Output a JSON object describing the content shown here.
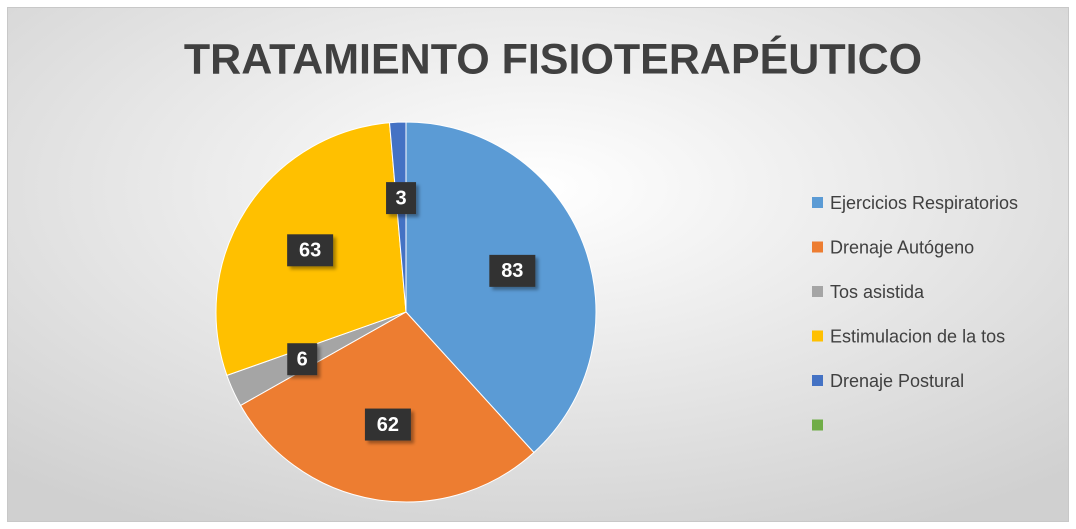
{
  "chart_data": {
    "type": "pie",
    "title": "TRATAMIENTO FISIOTERAPÉUTICO",
    "categories": [
      "Ejercicios Respiratorios",
      "Drenaje Autógeno",
      "Tos asistida",
      "Estimulacion de la tos",
      "Drenaje Postural",
      null
    ],
    "values": [
      83,
      62,
      6,
      63,
      3,
      0
    ],
    "colors": [
      "#5b9bd5",
      "#ed7d31",
      "#a5a5a5",
      "#ffc000",
      "#4472c4",
      "#70ad47"
    ],
    "legend": "right"
  }
}
